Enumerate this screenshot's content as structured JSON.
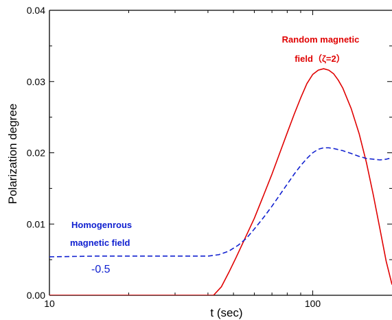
{
  "chart_data": {
    "type": "line",
    "title": "",
    "xlabel": "t (sec)",
    "ylabel": "Polarization degree",
    "x_scale": "log",
    "xlim": [
      10,
      200
    ],
    "ylim": [
      0,
      0.04
    ],
    "x_ticks": [
      {
        "value": 10,
        "label": "10"
      },
      {
        "value": 100,
        "label": "100"
      }
    ],
    "y_ticks": [
      {
        "value": 0,
        "label": "0.00"
      },
      {
        "value": 0.01,
        "label": "0.01"
      },
      {
        "value": 0.02,
        "label": "0.02"
      },
      {
        "value": 0.03,
        "label": "0.03"
      },
      {
        "value": 0.04,
        "label": "0.04"
      }
    ],
    "grid": false,
    "series": [
      {
        "name": "",
        "color": "#e00000",
        "dash": "solid",
        "x": [
          10,
          40,
          42,
          45,
          48,
          51,
          55,
          60,
          65,
          70,
          75,
          80,
          85,
          90,
          95,
          100,
          105,
          110,
          115,
          120,
          125,
          130,
          140,
          150,
          160,
          170,
          180,
          190,
          200
        ],
        "y": [
          0,
          0,
          0,
          0.0012,
          0.0032,
          0.0052,
          0.0078,
          0.0108,
          0.014,
          0.017,
          0.02,
          0.0228,
          0.0254,
          0.0277,
          0.0297,
          0.031,
          0.0316,
          0.0318,
          0.0316,
          0.0311,
          0.0302,
          0.0291,
          0.0262,
          0.0227,
          0.0186,
          0.014,
          0.0093,
          0.0048,
          0.0015
        ]
      },
      {
        "name": "",
        "color": "#1020d0",
        "dash": "dashed",
        "x": [
          10,
          15,
          20,
          25,
          30,
          35,
          40,
          44,
          48,
          52,
          56,
          60,
          65,
          70,
          75,
          80,
          85,
          90,
          95,
          100,
          105,
          110,
          115,
          120,
          130,
          140,
          150,
          160,
          170,
          180,
          190,
          200
        ],
        "y": [
          0.0054,
          0.0055,
          0.0055,
          0.0055,
          0.0055,
          0.0055,
          0.0055,
          0.0057,
          0.0062,
          0.007,
          0.008,
          0.0093,
          0.0109,
          0.0125,
          0.0141,
          0.0156,
          0.017,
          0.0182,
          0.0192,
          0.02,
          0.0205,
          0.0207,
          0.0207,
          0.0206,
          0.0203,
          0.0199,
          0.0195,
          0.0192,
          0.0191,
          0.019,
          0.0191,
          0.0193
        ]
      }
    ],
    "annotations": {
      "random_line1": "Random magnetic",
      "random_line2": "field（ζ=2）",
      "homog_line1": "Homogenrous",
      "homog_line2": "magnetic field",
      "value_label": "-0.5"
    },
    "colors": {
      "red": "#e00000",
      "blue": "#1020d0"
    }
  }
}
